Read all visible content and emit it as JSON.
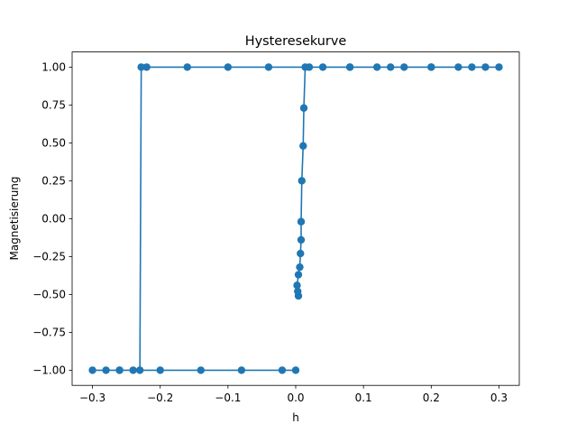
{
  "chart_data": {
    "type": "scatter",
    "title": "Hysteresekurve",
    "xlabel": "h",
    "ylabel": "Magnetisierung",
    "xlim": [
      -0.33,
      0.33
    ],
    "ylim": [
      -1.1,
      1.1
    ],
    "xticks": [
      -0.3,
      -0.2,
      -0.1,
      0.0,
      0.1,
      0.2,
      0.3
    ],
    "xtick_labels": [
      "−0.3",
      "−0.2",
      "−0.1",
      "0.0",
      "0.1",
      "0.2",
      "0.3"
    ],
    "yticks": [
      -1.0,
      -0.75,
      -0.5,
      -0.25,
      0.0,
      0.25,
      0.5,
      0.75,
      1.0
    ],
    "ytick_labels": [
      "−1.00",
      "−0.75",
      "−0.50",
      "−0.25",
      "0.00",
      "0.25",
      "0.50",
      "0.75",
      "1.00"
    ],
    "grid": false,
    "color": "#1f77b4",
    "series": [
      {
        "x": [
          0.004,
          0.003,
          0.002,
          0.004,
          0.006,
          0.007,
          0.008,
          0.008,
          0.009,
          0.011,
          0.012,
          0.014,
          0.04,
          0.08,
          0.12,
          0.16,
          0.2,
          0.24,
          0.28,
          0.3,
          0.26,
          0.2,
          0.14,
          0.08,
          0.02,
          -0.04,
          -0.1,
          -0.16,
          -0.22,
          -0.228,
          -0.23,
          -0.24,
          -0.26,
          -0.28,
          -0.3,
          -0.26,
          -0.2,
          -0.14,
          -0.08,
          -0.02,
          0.0
        ],
        "y": [
          -0.51,
          -0.48,
          -0.44,
          -0.37,
          -0.32,
          -0.23,
          -0.14,
          -0.02,
          0.25,
          0.48,
          0.73,
          1.0,
          1.0,
          1.0,
          1.0,
          1.0,
          1.0,
          1.0,
          1.0,
          1.0,
          1.0,
          1.0,
          1.0,
          1.0,
          1.0,
          1.0,
          1.0,
          1.0,
          1.0,
          1.0,
          -1.0,
          -1.0,
          -1.0,
          -1.0,
          -1.0,
          -1.0,
          -1.0,
          -1.0,
          -1.0,
          -1.0,
          -1.0
        ]
      }
    ]
  }
}
